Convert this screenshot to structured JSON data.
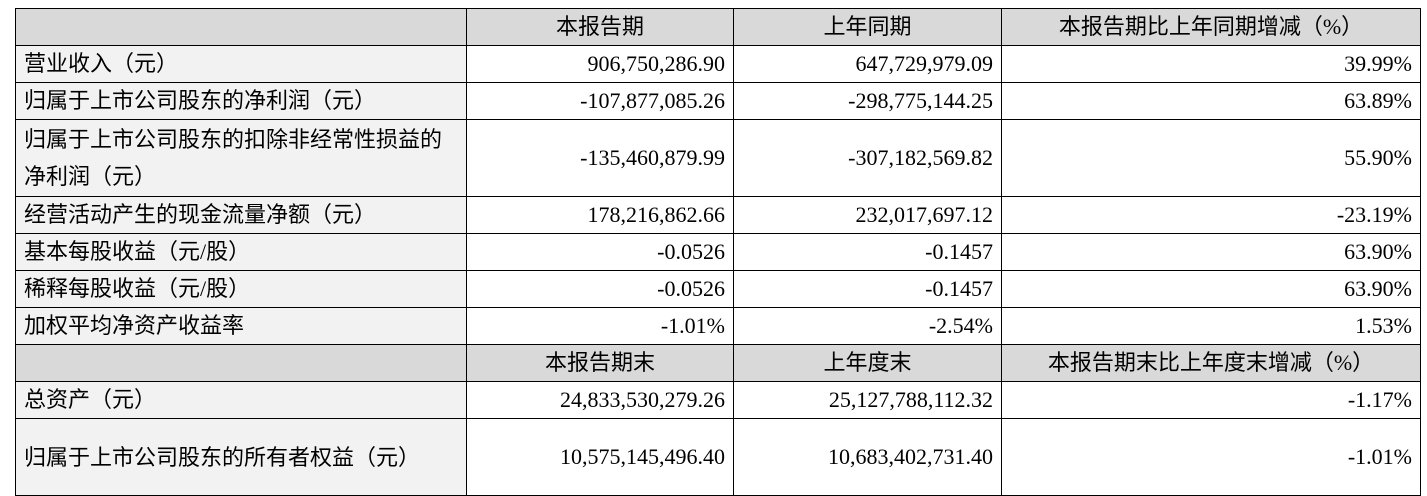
{
  "table": {
    "sections": [
      {
        "header": [
          "本报告期",
          "上年同期",
          "本报告期比上年同期增减（%）"
        ],
        "rows": [
          [
            "营业收入（元）",
            "906,750,286.90",
            "647,729,979.09",
            "39.99%"
          ],
          [
            "归属于上市公司股东的净利润（元）",
            "-107,877,085.26",
            "-298,775,144.25",
            "63.89%"
          ],
          [
            "归属于上市公司股东的扣除非经常性损益的净利润（元）",
            "-135,460,879.99",
            "-307,182,569.82",
            "55.90%"
          ],
          [
            "经营活动产生的现金流量净额（元）",
            "178,216,862.66",
            "232,017,697.12",
            "-23.19%"
          ],
          [
            "基本每股收益（元/股）",
            "-0.0526",
            "-0.1457",
            "63.90%"
          ],
          [
            "稀释每股收益（元/股）",
            "-0.0526",
            "-0.1457",
            "63.90%"
          ],
          [
            "加权平均净资产收益率",
            "-1.01%",
            "-2.54%",
            "1.53%"
          ]
        ]
      },
      {
        "header": [
          "本报告期末",
          "上年度末",
          "本报告期末比上年度末增减（%）"
        ],
        "rows": [
          [
            "总资产（元）",
            "24,833,530,279.26",
            "25,127,788,112.32",
            "-1.17%"
          ],
          [
            "归属于上市公司股东的所有者权益（元）",
            "10,575,145,496.40",
            "10,683,402,731.40",
            "-1.01%"
          ]
        ]
      }
    ]
  }
}
